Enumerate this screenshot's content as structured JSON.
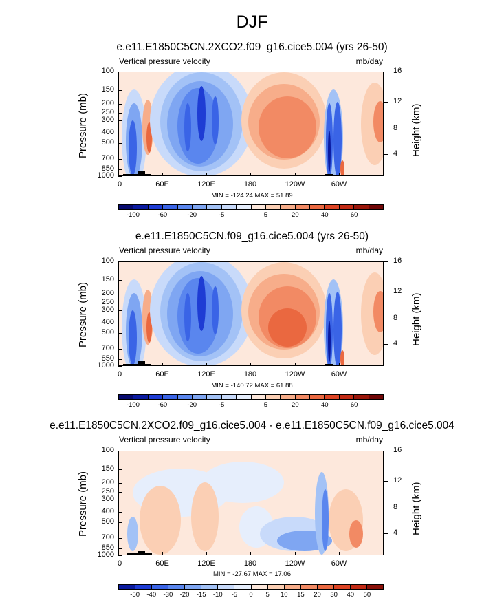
{
  "page": {
    "title": "DJF"
  },
  "chart_data": [
    {
      "type": "heatmap",
      "title": "e.e11.E1850C5CN.2XCO2.f09_g16.cice5.004 (yrs 26-50)",
      "left_label": "Vertical pressure velocity",
      "units": "mb/day",
      "ylabel": "Pressure (mb)",
      "ylabel_right": "Height (km)",
      "pressure_ticks": [
        "100",
        "150",
        "200",
        "250",
        "300",
        "400",
        "500",
        "700",
        "850",
        "1000"
      ],
      "height_ticks": [
        "16",
        "12",
        "8",
        "4"
      ],
      "x_ticks": [
        "0",
        "60E",
        "120E",
        "180",
        "120W",
        "60W"
      ],
      "stats": "MIN = -124.24  MAX =  51.89",
      "colorbar_labels": [
        "-100",
        "-60",
        "-20",
        "-5",
        "5",
        "20",
        "40",
        "60"
      ]
    },
    {
      "type": "heatmap",
      "title": "e.e11.E1850C5CN.f09_g16.cice5.004 (yrs 26-50)",
      "left_label": "Vertical pressure velocity",
      "units": "mb/day",
      "ylabel": "Pressure (mb)",
      "ylabel_right": "Height (km)",
      "pressure_ticks": [
        "100",
        "150",
        "200",
        "250",
        "300",
        "400",
        "500",
        "700",
        "850",
        "1000"
      ],
      "height_ticks": [
        "16",
        "12",
        "8",
        "4"
      ],
      "x_ticks": [
        "0",
        "60E",
        "120E",
        "180",
        "120W",
        "60W"
      ],
      "stats": "MIN = -140.72  MAX =  61.88",
      "colorbar_labels": [
        "-100",
        "-60",
        "-20",
        "-5",
        "5",
        "20",
        "40",
        "60"
      ]
    },
    {
      "type": "heatmap",
      "title": "e.e11.E1850C5CN.2XCO2.f09_g16.cice5.004 - e.e11.E1850C5CN.f09_g16.cice5.004",
      "left_label": "Vertical pressure velocity",
      "units": "mb/day",
      "ylabel": "Pressure (mb)",
      "ylabel_right": "Height (km)",
      "pressure_ticks": [
        "100",
        "150",
        "200",
        "250",
        "300",
        "400",
        "500",
        "700",
        "850",
        "1000"
      ],
      "height_ticks": [
        "16",
        "12",
        "8",
        "4"
      ],
      "x_ticks": [
        "0",
        "60E",
        "120E",
        "180",
        "120W",
        "60W"
      ],
      "stats": "MIN = -27.67  MAX =  17.06",
      "colorbar_labels": [
        "-50",
        "-40",
        "-30",
        "-20",
        "-15",
        "-10",
        "-5",
        "0",
        "5",
        "10",
        "15",
        "20",
        "30",
        "40",
        "50"
      ]
    }
  ],
  "colors": {
    "palette": [
      "#070a6e",
      "#0a1aa0",
      "#1e3cd4",
      "#3a64e6",
      "#5a86ee",
      "#7fa6f2",
      "#a3c2f6",
      "#c8dafa",
      "#e6eefc",
      "#fde8dc",
      "#fbcfb4",
      "#f7ad8a",
      "#f28a64",
      "#ea6840",
      "#dd4424",
      "#c22a14",
      "#9a160a",
      "#700606"
    ]
  }
}
